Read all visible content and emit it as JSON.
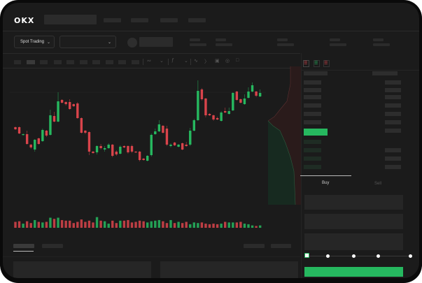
{
  "header": {
    "logo": "OKX"
  },
  "market_selector": {
    "label": "Spot Trading"
  },
  "order_form": {
    "tabs": [
      {
        "label": "Buy",
        "active": true
      },
      {
        "label": "Sell",
        "active": false
      }
    ],
    "slider_percent": 0
  },
  "colors": {
    "up": "#26b85f",
    "down": "#d9444b",
    "accent": "#26b85f",
    "background": "#1b1b1b"
  },
  "icons": [
    "chevron-down-icon",
    "indicator-icon",
    "draw-line-icon",
    "ruler-icon",
    "camera-icon",
    "settings-icon",
    "fullscreen-icon",
    "orderbook-both-icon",
    "orderbook-bids-icon",
    "orderbook-asks-icon"
  ],
  "chart_data": {
    "type": "candlestick",
    "title": "",
    "candles": [
      [
        68,
        69,
        64,
        65
      ],
      [
        68,
        69,
        58,
        59
      ],
      [
        57,
        59,
        56,
        58
      ],
      [
        58,
        63,
        43,
        44
      ],
      [
        43,
        44,
        37,
        39
      ],
      [
        36,
        51,
        33,
        50
      ],
      [
        52,
        53,
        43,
        44
      ],
      [
        48,
        66,
        47,
        64
      ],
      [
        63,
        64,
        54,
        56
      ],
      [
        57,
        93,
        56,
        85
      ],
      [
        84,
        90,
        75,
        76
      ],
      [
        76,
        118,
        75,
        105
      ],
      [
        107,
        108,
        102,
        103
      ],
      [
        104,
        105,
        99,
        101
      ],
      [
        104,
        108,
        93,
        94
      ],
      [
        101,
        102,
        97,
        98
      ],
      [
        102,
        104,
        80,
        81
      ],
      [
        81,
        82,
        59,
        60
      ],
      [
        63,
        64,
        58,
        60
      ],
      [
        61,
        62,
        28,
        33
      ],
      [
        33,
        34,
        30,
        31
      ],
      [
        32,
        42,
        29,
        41
      ],
      [
        41,
        44,
        36,
        38
      ],
      [
        36,
        41,
        33,
        38
      ],
      [
        38,
        45,
        37,
        43
      ],
      [
        43,
        44,
        25,
        27
      ],
      [
        33,
        35,
        27,
        29
      ],
      [
        30,
        42,
        29,
        40
      ],
      [
        41,
        42,
        38,
        39
      ],
      [
        41,
        42,
        30,
        32
      ],
      [
        41,
        43,
        31,
        33
      ],
      [
        33,
        34,
        31,
        32
      ],
      [
        33,
        34,
        19,
        21
      ],
      [
        23,
        24,
        20,
        21
      ],
      [
        20,
        28,
        19,
        27
      ],
      [
        28,
        59,
        26,
        57
      ],
      [
        58,
        66,
        57,
        62
      ],
      [
        62,
        78,
        61,
        72
      ],
      [
        70,
        71,
        59,
        60
      ],
      [
        66,
        70,
        41,
        43
      ],
      [
        41,
        45,
        39,
        43
      ],
      [
        46,
        47,
        41,
        42
      ],
      [
        40,
        44,
        39,
        43
      ],
      [
        45,
        46,
        35,
        36
      ],
      [
        43,
        47,
        40,
        41
      ],
      [
        43,
        67,
        41,
        63
      ],
      [
        63,
        80,
        62,
        78
      ],
      [
        78,
        135,
        77,
        120
      ],
      [
        122,
        124,
        106,
        108
      ],
      [
        109,
        110,
        82,
        85
      ],
      [
        87,
        88,
        84,
        85
      ],
      [
        85,
        86,
        77,
        79
      ],
      [
        81,
        83,
        78,
        79
      ],
      [
        77,
        91,
        76,
        89
      ],
      [
        91,
        96,
        88,
        89
      ],
      [
        87,
        96,
        86,
        91
      ],
      [
        92,
        118,
        91,
        117
      ],
      [
        119,
        120,
        106,
        107
      ],
      [
        108,
        109,
        102,
        103
      ],
      [
        101,
        115,
        100,
        109
      ],
      [
        110,
        125,
        109,
        119
      ],
      [
        119,
        132,
        118,
        128
      ],
      [
        119,
        120,
        111,
        113
      ],
      [
        112,
        122,
        111,
        117
      ]
    ],
    "volume": [
      10,
      11,
      7,
      11,
      8,
      13,
      10,
      9,
      10,
      17,
      15,
      17,
      13,
      12,
      12,
      8,
      10,
      14,
      10,
      12,
      9,
      18,
      12,
      11,
      7,
      12,
      8,
      12,
      12,
      13,
      9,
      10,
      12,
      11,
      9,
      11,
      12,
      13,
      11,
      8,
      13,
      8,
      10,
      8,
      10,
      6,
      9,
      8,
      9,
      7,
      6,
      7,
      6,
      7,
      10,
      9,
      9,
      9,
      10,
      7,
      6,
      4,
      3,
      4
    ],
    "grid": false
  }
}
